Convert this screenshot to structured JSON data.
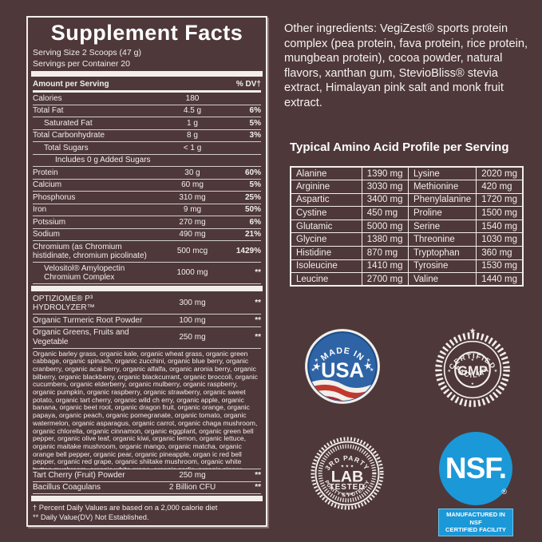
{
  "colors": {
    "background": "#4e383a",
    "text": "#f3eeea",
    "nsf_blue": "#1b98d8",
    "usa_blue": "#2e64a6",
    "usa_red": "#b3252f"
  },
  "supplement_facts": {
    "title": "Supplement Facts",
    "serving_size": "Serving Size 2 Scoops (47 g)",
    "servings_per_container": "Servings per Container 20",
    "header": {
      "amount": "Amount per Serving",
      "dv": "% DV†"
    },
    "rows": [
      {
        "name": "Calories",
        "value": "180",
        "dv": "",
        "indent": 0
      },
      {
        "name": "Total Fat",
        "value": "4.5 g",
        "dv": "6%",
        "indent": 0
      },
      {
        "name": "Saturated Fat",
        "value": "1 g",
        "dv": "5%",
        "indent": 1
      },
      {
        "name": "Total Carbonhydrate",
        "value": "8 g",
        "dv": "3%",
        "indent": 0
      },
      {
        "name": "Total Sugars",
        "value": "< 1 g",
        "dv": "",
        "indent": 1
      },
      {
        "name": "Includes 0 g Added Sugars",
        "value": "",
        "dv": "",
        "indent": 2
      },
      {
        "name": "Protein",
        "value": "30 g",
        "dv": "60%",
        "indent": 0
      },
      {
        "name": "Calcium",
        "value": "60 mg",
        "dv": "5%",
        "indent": 0
      },
      {
        "name": "Phosphorus",
        "value": "310 mg",
        "dv": "25%",
        "indent": 0
      },
      {
        "name": "Iron",
        "value": "9 mg",
        "dv": "50%",
        "indent": 0
      },
      {
        "name": "Potssium",
        "value": "270 mg",
        "dv": "6%",
        "indent": 0
      },
      {
        "name": "Sodium",
        "value": "490 mg",
        "dv": "21%",
        "indent": 0
      },
      {
        "name": "Chromium (as Chromium histidinate, chromium picolinate)",
        "value": "500 mcg",
        "dv": "1429%",
        "indent": 0
      },
      {
        "name": "Velositol® Amylopectin Chromium Complex",
        "value": "1000 mg",
        "dv": "**",
        "indent": 1,
        "separator_after": true
      },
      {
        "name": "OPTIZIOME® P³ HYDROLYZER™",
        "value": "300 mg",
        "dv": "**",
        "indent": 0
      },
      {
        "name": "Organic Turmeric Root Powder",
        "value": "100 mg",
        "dv": "**",
        "indent": 0
      },
      {
        "name": "Organic Greens, Fruits and Vegetable",
        "value": "250 mg",
        "dv": "**",
        "indent": 0
      }
    ],
    "ingredient_list": "Organic barley grass, organic kale, organic wheat grass, organic green cabbage, organic spinach, organic zucchini, organic blue berry, organic cranberry, organic acai berry, organic alfalfa, organic aronia berry, organic bilberry, organic blackberry, organic blackcurrant, organic broccoli, organic cucumbers, organic elderberry, organic mulberry, organic raspberry, organic pumpkin, organic raspberry, organic strawberry, organic sweet potato, organic tart cherry, organic wild ch erry, organic apple, organic banana, organic beet root, organic dragon fruit, organic orange, organic papaya, organic peach, organic pomegranate, organic tomato, organic watermelon, organic asparagus, organic carrot, organic chaga mushroom, organic chlorella, organic cinnamon, organic eggplant, organic green bell pepper, organic olive leaf, organic kiwi, organic lemon, organic lettuce, organic maitake mushroom, organic mango, organic matcha, organic orange bell pepper, organic pear, organic pineapple, organ ic red bell pepper, organic red grape, organic shiitake mushroom, organic white button mushroom, organic white grape, organic garlic, organic ginger, organic green onion, organic red onion.",
    "bottom_rows": [
      {
        "name": "Tart Cherry (Fruit) Powder",
        "value": "250 mg",
        "dv": "**"
      },
      {
        "name": "Bacillus Coagulans",
        "value": "2 Billion CFU",
        "dv": "**"
      }
    ],
    "footnotes": [
      "† Percent Daily Values are based on a 2,000 calorie diet",
      "** Daily Value(DV) Not Established."
    ]
  },
  "other_ingredients": "Other ingredients: VegiZest® sports protein complex (pea protein, fava protein, rice protein, mungbean protein), cocoa powder, natural flavors, xanthan gum, StevioBliss® stevia extract, Himalayan pink salt and monk fruit extract.",
  "amino_acid_profile": {
    "title": "Typical Amino Acid Profile per Serving",
    "rows": [
      [
        "Alanine",
        "1390 mg",
        "Lysine",
        "2020 mg"
      ],
      [
        "Arginine",
        "3030 mg",
        "Methionine",
        "420 mg"
      ],
      [
        "Aspartic",
        "3400 mg",
        "Phenylalanine",
        "1720 mg"
      ],
      [
        "Cystine",
        "450 mg",
        "Proline",
        "1500 mg"
      ],
      [
        "Glutamic",
        "5000 mg",
        "Serine",
        "1540 mg"
      ],
      [
        "Glycine",
        "1380 mg",
        "Threonine",
        "1030 mg"
      ],
      [
        "Histidine",
        "870 mg",
        "Tryptophan",
        "360 mg"
      ],
      [
        "Isoleucine",
        "1410 mg",
        "Tyrosine",
        "1530 mg"
      ],
      [
        "Leucine",
        "2700 mg",
        "Valine",
        "1440 mg"
      ]
    ]
  },
  "badges": {
    "star_char": "★",
    "stars_row": "★ ★ ★",
    "usa": {
      "top": "★ MADE IN ★",
      "center": "USA"
    },
    "gmp": {
      "top": "CERTIFIED",
      "center": "GMP",
      "bottom": "FACILITY"
    },
    "lab": {
      "top": "3RD PARTY",
      "line1": "LAB",
      "line2": "TESTED",
      "bottom": "PURITY & POTENCY"
    },
    "nsf": {
      "logo": "NSF.",
      "reg": "®",
      "caption_line1": "MANUFACTURED IN NSF",
      "caption_line2": "CERTIFIED FACILITY"
    }
  }
}
